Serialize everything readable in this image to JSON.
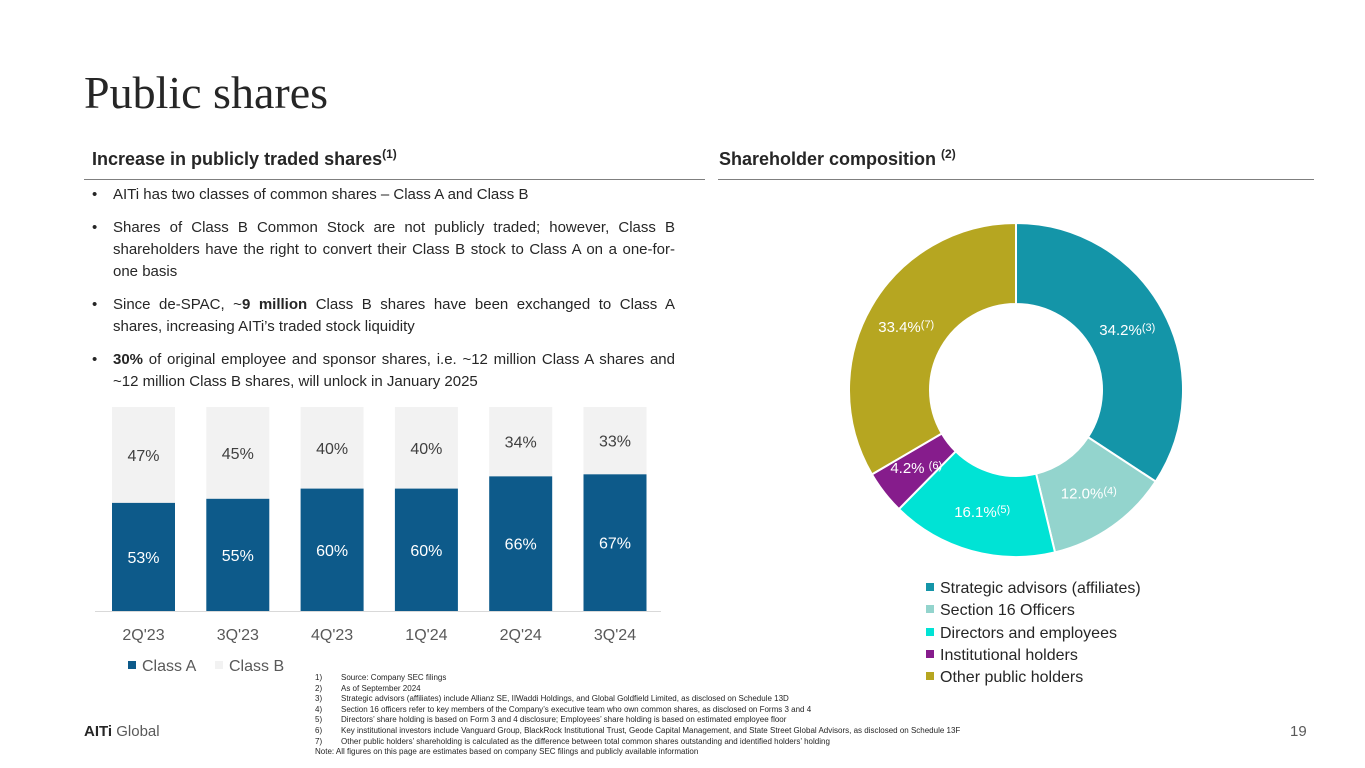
{
  "title": "Public shares",
  "left_section": {
    "heading": "Increase in publicly traded shares",
    "heading_sup": "(1)",
    "bullets": [
      {
        "pre": "AITi has two classes of common shares – Class A and Class B",
        "bold": "",
        "post": ""
      },
      {
        "pre": "Shares of Class B Common Stock are not publicly traded; however, Class B shareholders have the right to convert their Class B stock to Class A on a one-for-one basis",
        "bold": "",
        "post": ""
      },
      {
        "pre": "Since de-SPAC, ~",
        "bold": "9 million",
        "post": " Class B shares have been exchanged to Class A shares, increasing AITi’s traded stock liquidity"
      },
      {
        "pre": "",
        "bold": "30%",
        "post": " of original employee and sponsor shares, i.e. ~12 million Class A shares and ~12 million Class B shares, will unlock in January 2025"
      }
    ],
    "bullet_glyph": "•"
  },
  "right_section": {
    "heading": "Shareholder composition ",
    "heading_sup": "(2)"
  },
  "chart_data": [
    {
      "type": "bar",
      "stacked": true,
      "categories": [
        "2Q'23",
        "3Q'23",
        "4Q'23",
        "1Q'24",
        "2Q'24",
        "3Q'24"
      ],
      "series": [
        {
          "name": "Class A",
          "values": [
            53,
            55,
            60,
            60,
            66,
            67
          ],
          "labels": [
            "53%",
            "55%",
            "60%",
            "60%",
            "66%",
            "67%"
          ],
          "color": "#0d5a8a"
        },
        {
          "name": "Class B",
          "values": [
            47,
            45,
            40,
            40,
            34,
            33
          ],
          "labels": [
            "47%",
            "45%",
            "40%",
            "40%",
            "34%",
            "33%"
          ],
          "color": "#f2f2f2"
        }
      ],
      "ylim": [
        0,
        100
      ],
      "legend_position": "bottom-left",
      "grid": false
    },
    {
      "type": "pie",
      "donut": true,
      "slices": [
        {
          "name": "Strategic advisors (affiliates)",
          "value": 34.2,
          "label": "34.2%",
          "sup": "(3)",
          "color": "#1495a8"
        },
        {
          "name": "Section 16 Officers",
          "value": 12.0,
          "label": "12.0%",
          "sup": "(4)",
          "color": "#93d4cd"
        },
        {
          "name": "Directors and employees",
          "value": 16.1,
          "label": "16.1%",
          "sup": "(5)",
          "color": "#00e3d5"
        },
        {
          "name": "Institutional holders",
          "value": 4.2,
          "label": "4.2% ",
          "sup": "(6)",
          "color": "#861c8c"
        },
        {
          "name": "Other public holders",
          "value": 33.4,
          "label": "33.4%",
          "sup": "(7)",
          "color": "#b6a621"
        }
      ],
      "legend_position": "bottom"
    }
  ],
  "footnotes": [
    {
      "num": "1)",
      "text": "Source: Company SEC filings"
    },
    {
      "num": "2)",
      "text": "As of September 2024"
    },
    {
      "num": "3)",
      "text": "Strategic advisors (affiliates) include Allianz SE, IIWaddi Holdings, and Global Goldfield Limited, as disclosed on Schedule 13D"
    },
    {
      "num": "4)",
      "text": "Section 16 officers refer to key members of the Company’s executive team who own common shares, as disclosed on Forms 3 and 4"
    },
    {
      "num": "5)",
      "text": "Directors’ share holding is based on Form 3 and 4 disclosure; Employees’ share holding is based on estimated employee floor"
    },
    {
      "num": "6)",
      "text": "Key institutional investors include Vanguard Group, BlackRock Institutional Trust, Geode Capital Management, and State Street Global Advisors, as disclosed on Schedule 13F"
    },
    {
      "num": "7)",
      "text": "Other public holders’ shareholding is calculated as the difference between total common shares outstanding and identified holders’ holding"
    },
    {
      "num": "Note:",
      "text": "All figures on this page are estimates based on company SEC filings and publicly available information"
    }
  ],
  "footer": {
    "logo_bold": "AITi",
    "logo_rest": " Global",
    "page_number": "19"
  }
}
